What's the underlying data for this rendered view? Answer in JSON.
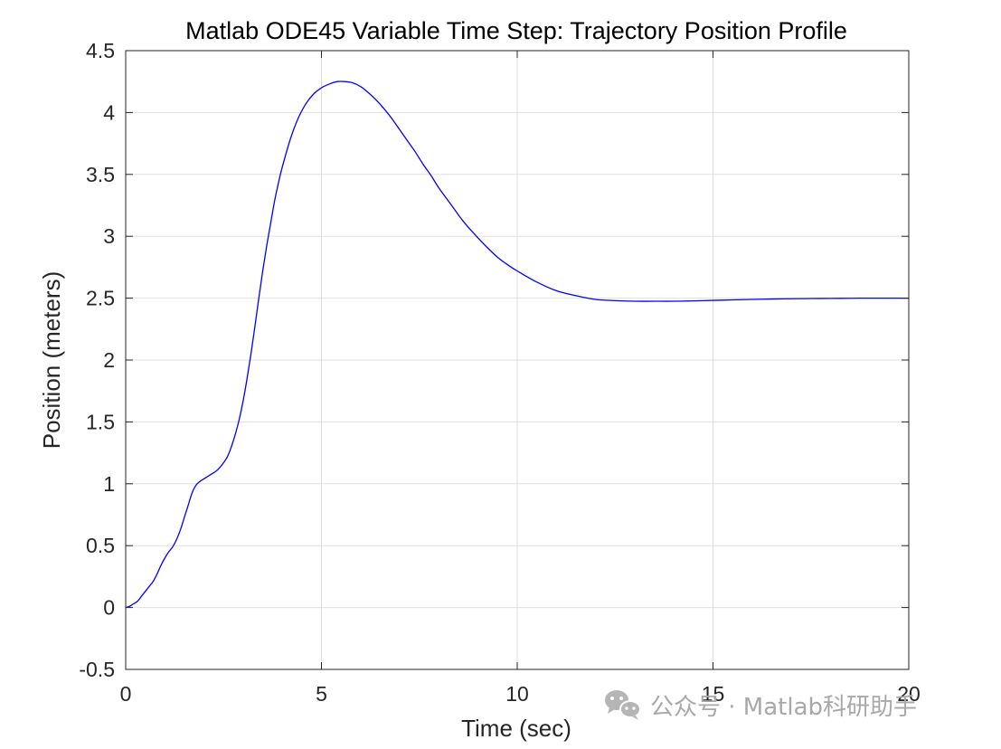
{
  "chart_data": {
    "type": "line",
    "title": "Matlab ODE45 Variable Time Step:  Trajectory Position Profile",
    "xlabel": "Time (sec)",
    "ylabel": "Position (meters)",
    "xlim": [
      0,
      20
    ],
    "ylim": [
      -0.5,
      4.5
    ],
    "xticks": [
      0,
      5,
      10,
      15,
      20
    ],
    "xtick_labels": [
      "0",
      "5",
      "10",
      "15",
      "20"
    ],
    "yticks": [
      -0.5,
      0,
      0.5,
      1,
      1.5,
      2,
      2.5,
      3,
      3.5,
      4,
      4.5
    ],
    "ytick_labels": [
      "-0.5",
      "0",
      "0.5",
      "1",
      "1.5",
      "2",
      "2.5",
      "3",
      "3.5",
      "4",
      "4.5"
    ],
    "grid": true,
    "box": true,
    "series": [
      {
        "color": "#0000ff",
        "x": [
          0,
          0.1,
          0.2,
          0.3,
          0.4,
          0.5,
          0.6,
          0.7,
          0.8,
          0.9,
          1.0,
          1.1,
          1.2,
          1.3,
          1.4,
          1.5,
          1.6,
          1.7,
          1.8,
          1.9,
          2.0,
          2.1,
          2.2,
          2.3,
          2.4,
          2.5,
          2.6,
          2.7,
          2.8,
          2.9,
          3.0,
          3.1,
          3.2,
          3.3,
          3.4,
          3.5,
          3.6,
          3.7,
          3.8,
          3.9,
          4.0,
          4.2,
          4.4,
          4.6,
          4.8,
          5.0,
          5.2,
          5.4,
          5.6,
          5.8,
          6.0,
          6.2,
          6.4,
          6.6,
          6.8,
          7.0,
          7.2,
          7.4,
          7.6,
          7.8,
          8.0,
          8.3,
          8.6,
          8.9,
          9.2,
          9.5,
          9.8,
          10.0,
          10.5,
          11.0,
          11.5,
          12.0,
          12.5,
          13.0,
          13.5,
          14.0,
          14.5,
          15.0,
          15.5,
          16.0,
          16.5,
          17.0,
          17.5,
          18.0,
          18.5,
          19.0,
          19.5,
          20.0
        ],
        "y": [
          0.0,
          0.01,
          0.03,
          0.05,
          0.09,
          0.13,
          0.17,
          0.21,
          0.27,
          0.34,
          0.4,
          0.45,
          0.49,
          0.55,
          0.63,
          0.73,
          0.83,
          0.93,
          0.99,
          1.02,
          1.04,
          1.06,
          1.08,
          1.1,
          1.13,
          1.17,
          1.22,
          1.3,
          1.4,
          1.52,
          1.67,
          1.85,
          2.05,
          2.27,
          2.5,
          2.72,
          2.92,
          3.1,
          3.28,
          3.43,
          3.56,
          3.78,
          3.95,
          4.07,
          4.15,
          4.2,
          4.23,
          4.25,
          4.25,
          4.24,
          4.21,
          4.16,
          4.1,
          4.03,
          3.95,
          3.86,
          3.77,
          3.68,
          3.58,
          3.49,
          3.39,
          3.26,
          3.13,
          3.02,
          2.92,
          2.83,
          2.76,
          2.72,
          2.63,
          2.56,
          2.52,
          2.49,
          2.48,
          2.475,
          2.475,
          2.475,
          2.478,
          2.482,
          2.486,
          2.49,
          2.493,
          2.495,
          2.497,
          2.498,
          2.499,
          2.5,
          2.5,
          2.5
        ]
      }
    ]
  },
  "watermark": {
    "text": "公众号 · Matlab科研助手",
    "icon": "wechat-icon"
  },
  "colors": {
    "line": "#0000ff",
    "axis": "#262626",
    "grid": "#dfdfdf",
    "watermark": "#a8a8a8"
  }
}
